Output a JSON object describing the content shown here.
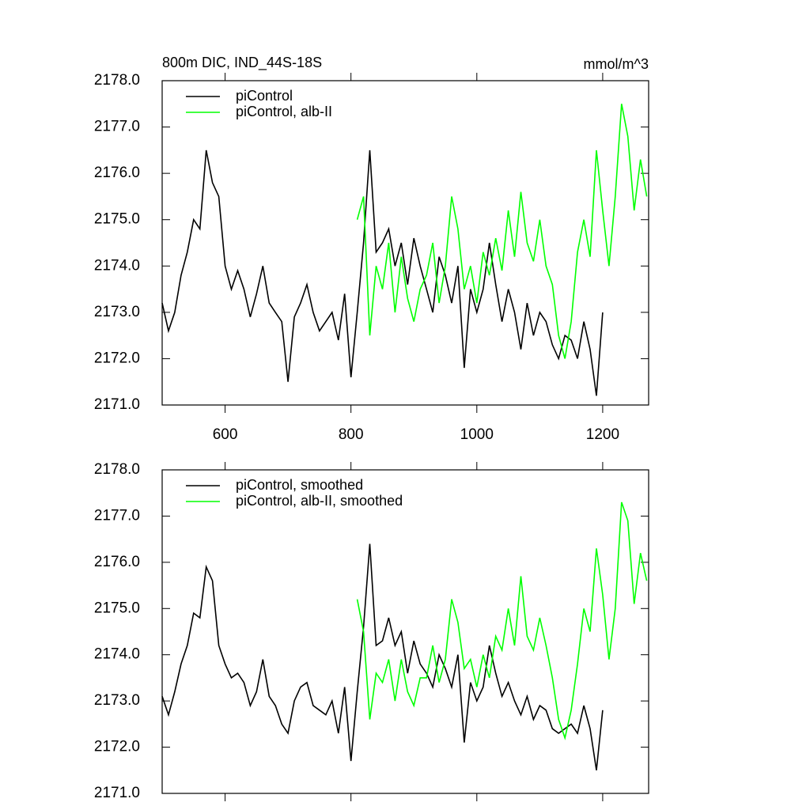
{
  "chart_data": [
    {
      "type": "line",
      "title": "800m DIC, IND_44S-18S",
      "units": "mmol/m^3",
      "xlim": [
        500,
        1273
      ],
      "ylim": [
        2171,
        2178
      ],
      "xticks": [
        600,
        800,
        1000,
        1200
      ],
      "yticks": [
        {
          "value": 2171,
          "label": "2171.0"
        },
        {
          "value": 2172,
          "label": "2172.0"
        },
        {
          "value": 2173,
          "label": "2173.0"
        },
        {
          "value": 2174,
          "label": "2174.0"
        },
        {
          "value": 2175,
          "label": "2175.0"
        },
        {
          "value": 2176,
          "label": "2176.0"
        },
        {
          "value": 2177,
          "label": "2177.0"
        },
        {
          "value": 2178,
          "label": "2178.0"
        }
      ],
      "series": [
        {
          "name": "piControl",
          "color": "#000000",
          "x": [
            500,
            510,
            520,
            530,
            540,
            550,
            560,
            570,
            580,
            590,
            600,
            610,
            620,
            630,
            640,
            650,
            660,
            670,
            680,
            690,
            700,
            710,
            720,
            730,
            740,
            750,
            760,
            770,
            780,
            790,
            800,
            810,
            820,
            830,
            840,
            850,
            860,
            870,
            880,
            890,
            900,
            910,
            920,
            930,
            940,
            950,
            960,
            970,
            980,
            990,
            1000,
            1010,
            1020,
            1030,
            1040,
            1050,
            1060,
            1070,
            1080,
            1090,
            1100,
            1110,
            1120,
            1130,
            1140,
            1150,
            1160,
            1170,
            1180,
            1190,
            1200
          ],
          "values": [
            2173.2,
            2172.6,
            2173.0,
            2173.8,
            2174.3,
            2175.0,
            2174.8,
            2176.5,
            2175.8,
            2175.5,
            2174.0,
            2173.5,
            2173.9,
            2173.5,
            2172.9,
            2173.4,
            2174.0,
            2173.2,
            2173.0,
            2172.8,
            2171.5,
            2172.9,
            2173.2,
            2173.6,
            2173.0,
            2172.6,
            2172.8,
            2173.0,
            2172.4,
            2173.4,
            2171.6,
            2173.0,
            2174.5,
            2176.5,
            2174.3,
            2174.5,
            2174.8,
            2174.0,
            2174.5,
            2173.6,
            2174.6,
            2174.0,
            2173.5,
            2173.0,
            2174.2,
            2173.8,
            2173.2,
            2174.0,
            2171.8,
            2173.5,
            2173.0,
            2173.5,
            2174.5,
            2173.6,
            2172.8,
            2173.5,
            2173.0,
            2172.2,
            2173.2,
            2172.5,
            2173.0,
            2172.8,
            2172.3,
            2172.0,
            2172.5,
            2172.4,
            2172.0,
            2172.8,
            2172.2,
            2171.2,
            2173.0
          ]
        },
        {
          "name": "piControl, alb-II",
          "color": "#00ff00",
          "x": [
            810,
            820,
            830,
            840,
            850,
            860,
            870,
            880,
            890,
            900,
            910,
            920,
            930,
            940,
            950,
            960,
            970,
            980,
            990,
            1000,
            1010,
            1020,
            1030,
            1040,
            1050,
            1060,
            1070,
            1080,
            1090,
            1100,
            1110,
            1120,
            1130,
            1140,
            1150,
            1160,
            1170,
            1180,
            1190,
            1200,
            1210,
            1220,
            1230,
            1240,
            1250,
            1260,
            1270
          ],
          "values": [
            2175.0,
            2175.5,
            2172.5,
            2174.0,
            2173.5,
            2174.5,
            2173.0,
            2174.2,
            2173.3,
            2172.8,
            2173.5,
            2173.8,
            2174.5,
            2173.2,
            2174.0,
            2175.5,
            2174.8,
            2173.5,
            2174.0,
            2173.2,
            2174.3,
            2173.8,
            2174.6,
            2173.9,
            2175.2,
            2174.2,
            2175.6,
            2174.5,
            2174.1,
            2175.0,
            2174.0,
            2173.6,
            2172.5,
            2172.0,
            2172.8,
            2174.3,
            2175.0,
            2174.2,
            2176.5,
            2175.2,
            2174.0,
            2175.5,
            2177.5,
            2176.8,
            2175.2,
            2176.3,
            2175.5
          ]
        }
      ]
    },
    {
      "type": "line",
      "xlim": [
        500,
        1273
      ],
      "ylim": [
        2171,
        2178
      ],
      "xticks": [
        600,
        800,
        1000,
        1200
      ],
      "yticks": [
        {
          "value": 2171,
          "label": "2171.0"
        },
        {
          "value": 2172,
          "label": "2172.0"
        },
        {
          "value": 2173,
          "label": "2173.0"
        },
        {
          "value": 2174,
          "label": "2174.0"
        },
        {
          "value": 2175,
          "label": "2175.0"
        },
        {
          "value": 2176,
          "label": "2176.0"
        },
        {
          "value": 2177,
          "label": "2177.0"
        },
        {
          "value": 2178,
          "label": "2178.0"
        }
      ],
      "series": [
        {
          "name": "piControl, smoothed",
          "color": "#000000",
          "x": [
            500,
            510,
            520,
            530,
            540,
            550,
            560,
            570,
            580,
            590,
            600,
            610,
            620,
            630,
            640,
            650,
            660,
            670,
            680,
            690,
            700,
            710,
            720,
            730,
            740,
            750,
            760,
            770,
            780,
            790,
            800,
            810,
            820,
            830,
            840,
            850,
            860,
            870,
            880,
            890,
            900,
            910,
            920,
            930,
            940,
            950,
            960,
            970,
            980,
            990,
            1000,
            1010,
            1020,
            1030,
            1040,
            1050,
            1060,
            1070,
            1080,
            1090,
            1100,
            1110,
            1120,
            1130,
            1140,
            1150,
            1160,
            1170,
            1180,
            1190,
            1200
          ],
          "values": [
            2173.1,
            2172.7,
            2173.2,
            2173.8,
            2174.2,
            2174.9,
            2174.8,
            2175.9,
            2175.6,
            2174.2,
            2173.8,
            2173.5,
            2173.6,
            2173.4,
            2172.9,
            2173.2,
            2173.9,
            2173.1,
            2172.9,
            2172.5,
            2172.3,
            2173.0,
            2173.3,
            2173.4,
            2172.9,
            2172.8,
            2172.7,
            2173.0,
            2172.3,
            2173.3,
            2171.7,
            2173.2,
            2174.6,
            2176.4,
            2174.2,
            2174.3,
            2174.8,
            2174.2,
            2174.5,
            2173.6,
            2174.3,
            2173.8,
            2173.6,
            2173.3,
            2174.0,
            2173.7,
            2173.3,
            2174.0,
            2172.1,
            2173.4,
            2173.0,
            2173.3,
            2174.2,
            2173.6,
            2173.1,
            2173.4,
            2173.0,
            2172.7,
            2173.1,
            2172.6,
            2172.9,
            2172.8,
            2172.4,
            2172.3,
            2172.4,
            2172.5,
            2172.3,
            2172.9,
            2172.4,
            2171.5,
            2172.8
          ]
        },
        {
          "name": "piControl, alb-II, smoothed",
          "color": "#00ff00",
          "x": [
            810,
            820,
            830,
            840,
            850,
            860,
            870,
            880,
            890,
            900,
            910,
            920,
            930,
            940,
            950,
            960,
            970,
            980,
            990,
            1000,
            1010,
            1020,
            1030,
            1040,
            1050,
            1060,
            1070,
            1080,
            1090,
            1100,
            1110,
            1120,
            1130,
            1140,
            1150,
            1160,
            1170,
            1180,
            1190,
            1200,
            1210,
            1220,
            1230,
            1240,
            1250,
            1260,
            1270
          ],
          "values": [
            2175.2,
            2174.5,
            2172.6,
            2173.6,
            2173.4,
            2173.9,
            2173.0,
            2173.9,
            2173.2,
            2172.9,
            2173.5,
            2173.5,
            2174.2,
            2173.4,
            2173.9,
            2175.2,
            2174.7,
            2173.7,
            2173.9,
            2173.3,
            2174.0,
            2173.5,
            2174.4,
            2174.1,
            2175.0,
            2174.2,
            2175.7,
            2174.4,
            2174.1,
            2174.8,
            2174.2,
            2173.5,
            2172.6,
            2172.2,
            2172.8,
            2173.8,
            2175.0,
            2174.5,
            2176.3,
            2175.3,
            2173.9,
            2175.0,
            2177.3,
            2176.9,
            2175.1,
            2176.2,
            2175.6
          ]
        }
      ]
    }
  ]
}
